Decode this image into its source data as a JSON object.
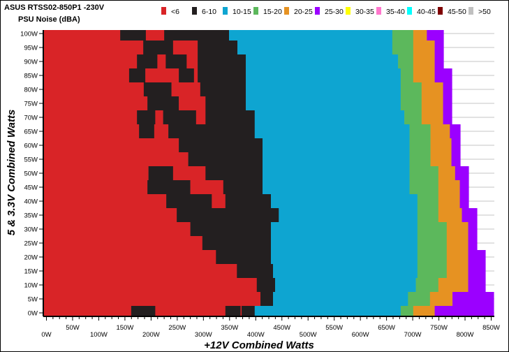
{
  "chart_data": {
    "type": "heatmap",
    "title": "ASUS RTSS02-850P1 -230V",
    "subtitle": "PSU Noise (dBA)",
    "xlabel": "+12V Combined Watts",
    "ylabel": "5 & 3.3V Combined Watts",
    "xlim": [
      -6,
      856
    ],
    "ylim": [
      -1.25,
      101.25
    ],
    "grid": "horizontal gridlines, visible only in empty area",
    "legend_position": "top",
    "legend": [
      {
        "label": "<6",
        "color": "#d92427"
      },
      {
        "label": "6-10",
        "color": "#231f20"
      },
      {
        "label": "10-15",
        "color": "#0ea5d1"
      },
      {
        "label": "15-20",
        "color": "#5cb85c"
      },
      {
        "label": "20-25",
        "color": "#e69222"
      },
      {
        "label": "25-30",
        "color": "#9b00ff"
      },
      {
        "label": "30-35",
        "color": "#ffff00"
      },
      {
        "label": "35-40",
        "color": "#ff77cc"
      },
      {
        "label": "40-45",
        "color": "#00ffff"
      },
      {
        "label": "45-50",
        "color": "#7f0000"
      },
      {
        "label": ">50",
        "color": "#c0c0c0"
      }
    ],
    "yticks": [
      "0W",
      "5W",
      "10W",
      "15W",
      "20W",
      "25W",
      "30W",
      "35W",
      "40W",
      "45W",
      "50W",
      "55W",
      "60W",
      "65W",
      "70W",
      "75W",
      "80W",
      "85W",
      "90W",
      "95W",
      "100W"
    ],
    "xticks_upper": [
      "50W",
      "150W",
      "250W",
      "350W",
      "450W",
      "550W",
      "650W",
      "750W",
      "850W"
    ],
    "xticks_lower": [
      "0W",
      "100W",
      "200W",
      "300W",
      "400W",
      "500W",
      "600W",
      "700W",
      "800W"
    ],
    "rows_note_units": "each row: y in W (5 & 3.3V); bands list [upper +12V W, noise band]",
    "rows": [
      {
        "y": 100,
        "bands": [
          [
            141,
            "<6"
          ],
          [
            190,
            "6-10"
          ],
          [
            225,
            "<6"
          ],
          [
            349,
            "6-10"
          ],
          [
            661,
            "10-15"
          ],
          [
            701,
            "15-20"
          ],
          [
            727,
            "20-25"
          ],
          [
            759,
            "25-30"
          ]
        ]
      },
      {
        "y": 95,
        "bands": [
          [
            185,
            "<6"
          ],
          [
            242,
            "6-10"
          ],
          [
            289,
            "<6"
          ],
          [
            365,
            "6-10"
          ],
          [
            661,
            "10-15"
          ],
          [
            701,
            "15-20"
          ],
          [
            742,
            "20-25"
          ],
          [
            759,
            "25-30"
          ]
        ]
      },
      {
        "y": 90,
        "bands": [
          [
            173,
            "<6"
          ],
          [
            212,
            "6-10"
          ],
          [
            228,
            "<6"
          ],
          [
            268,
            "6-10"
          ],
          [
            289,
            "<6"
          ],
          [
            381,
            "6-10"
          ],
          [
            672,
            "10-15"
          ],
          [
            701,
            "15-20"
          ],
          [
            742,
            "20-25"
          ],
          [
            759,
            "25-30"
          ]
        ]
      },
      {
        "y": 85,
        "bands": [
          [
            158,
            "<6"
          ],
          [
            189,
            "6-10"
          ],
          [
            253,
            "<6"
          ],
          [
            282,
            "6-10"
          ],
          [
            289,
            "<6"
          ],
          [
            381,
            "6-10"
          ],
          [
            677,
            "10-15"
          ],
          [
            701,
            "15-20"
          ],
          [
            742,
            "20-25"
          ],
          [
            775,
            "25-30"
          ]
        ]
      },
      {
        "y": 80,
        "bands": [
          [
            186,
            "<6"
          ],
          [
            239,
            "6-10"
          ],
          [
            294,
            "<6"
          ],
          [
            381,
            "6-10"
          ],
          [
            677,
            "10-15"
          ],
          [
            717,
            "15-20"
          ],
          [
            758,
            "20-25"
          ],
          [
            775,
            "25-30"
          ]
        ]
      },
      {
        "y": 75,
        "bands": [
          [
            193,
            "<6"
          ],
          [
            253,
            "6-10"
          ],
          [
            304,
            "<6"
          ],
          [
            381,
            "6-10"
          ],
          [
            677,
            "10-15"
          ],
          [
            717,
            "15-20"
          ],
          [
            758,
            "20-25"
          ],
          [
            775,
            "25-30"
          ]
        ]
      },
      {
        "y": 70,
        "bands": [
          [
            173,
            "<6"
          ],
          [
            208,
            "6-10"
          ],
          [
            223,
            "<6"
          ],
          [
            286,
            "6-10"
          ],
          [
            304,
            "<6"
          ],
          [
            398,
            "6-10"
          ],
          [
            684,
            "10-15"
          ],
          [
            717,
            "15-20"
          ],
          [
            758,
            "20-25"
          ],
          [
            775,
            "25-30"
          ]
        ]
      },
      {
        "y": 65,
        "bands": [
          [
            177,
            "<6"
          ],
          [
            206,
            "6-10"
          ],
          [
            233,
            "<6"
          ],
          [
            398,
            "6-10"
          ],
          [
            694,
            "10-15"
          ],
          [
            734,
            "15-20"
          ],
          [
            771,
            "20-25"
          ],
          [
            791,
            "25-30"
          ]
        ]
      },
      {
        "y": 60,
        "bands": [
          [
            253,
            "<6"
          ],
          [
            413,
            "6-10"
          ],
          [
            694,
            "10-15"
          ],
          [
            734,
            "15-20"
          ],
          [
            774,
            "20-25"
          ],
          [
            791,
            "25-30"
          ]
        ]
      },
      {
        "y": 55,
        "bands": [
          [
            271,
            "<6"
          ],
          [
            413,
            "6-10"
          ],
          [
            694,
            "10-15"
          ],
          [
            734,
            "15-20"
          ],
          [
            774,
            "20-25"
          ],
          [
            791,
            "25-30"
          ]
        ]
      },
      {
        "y": 50,
        "bands": [
          [
            195,
            "<6"
          ],
          [
            242,
            "6-10"
          ],
          [
            304,
            "<6"
          ],
          [
            413,
            "6-10"
          ],
          [
            694,
            "10-15"
          ],
          [
            749,
            "15-20"
          ],
          [
            781,
            "20-25"
          ],
          [
            807,
            "25-30"
          ]
        ]
      },
      {
        "y": 45,
        "bands": [
          [
            193,
            "<6"
          ],
          [
            275,
            "6-10"
          ],
          [
            338,
            "<6"
          ],
          [
            413,
            "6-10"
          ],
          [
            694,
            "10-15"
          ],
          [
            749,
            "15-20"
          ],
          [
            790,
            "20-25"
          ],
          [
            807,
            "25-30"
          ]
        ]
      },
      {
        "y": 40,
        "bands": [
          [
            229,
            "<6"
          ],
          [
            316,
            "6-10"
          ],
          [
            342,
            "<6"
          ],
          [
            429,
            "6-10"
          ],
          [
            709,
            "10-15"
          ],
          [
            749,
            "15-20"
          ],
          [
            790,
            "20-25"
          ],
          [
            807,
            "25-30"
          ]
        ]
      },
      {
        "y": 35,
        "bands": [
          [
            249,
            "<6"
          ],
          [
            444,
            "6-10"
          ],
          [
            709,
            "10-15"
          ],
          [
            749,
            "15-20"
          ],
          [
            794,
            "20-25"
          ],
          [
            823,
            "25-30"
          ]
        ]
      },
      {
        "y": 30,
        "bands": [
          [
            275,
            "<6"
          ],
          [
            429,
            "6-10"
          ],
          [
            709,
            "10-15"
          ],
          [
            765,
            "15-20"
          ],
          [
            806,
            "20-25"
          ],
          [
            823,
            "25-30"
          ]
        ]
      },
      {
        "y": 25,
        "bands": [
          [
            298,
            "<6"
          ],
          [
            429,
            "6-10"
          ],
          [
            709,
            "10-15"
          ],
          [
            765,
            "15-20"
          ],
          [
            806,
            "20-25"
          ],
          [
            823,
            "25-30"
          ]
        ]
      },
      {
        "y": 20,
        "bands": [
          [
            324,
            "<6"
          ],
          [
            429,
            "6-10"
          ],
          [
            709,
            "10-15"
          ],
          [
            765,
            "15-20"
          ],
          [
            806,
            "20-25"
          ],
          [
            839,
            "25-30"
          ]
        ]
      },
      {
        "y": 15,
        "bands": [
          [
            364,
            "<6"
          ],
          [
            433,
            "6-10"
          ],
          [
            709,
            "10-15"
          ],
          [
            765,
            "15-20"
          ],
          [
            806,
            "20-25"
          ],
          [
            839,
            "25-30"
          ]
        ]
      },
      {
        "y": 10,
        "bands": [
          [
            402,
            "<6"
          ],
          [
            437,
            "6-10"
          ],
          [
            706,
            "10-15"
          ],
          [
            749,
            "15-20"
          ],
          [
            806,
            "20-25"
          ],
          [
            839,
            "25-30"
          ]
        ]
      },
      {
        "y": 5,
        "bands": [
          [
            409,
            "<6"
          ],
          [
            433,
            "6-10"
          ],
          [
            691,
            "10-15"
          ],
          [
            733,
            "15-20"
          ],
          [
            776,
            "20-25"
          ],
          [
            855,
            "25-30"
          ]
        ]
      },
      {
        "y": 0,
        "bands": [
          [
            162,
            "<6"
          ],
          [
            208,
            "6-10"
          ],
          [
            342,
            "<6"
          ],
          [
            371,
            "6-10"
          ],
          [
            373,
            "<6"
          ],
          [
            398,
            "6-10"
          ],
          [
            677,
            "10-15"
          ],
          [
            701,
            "15-20"
          ],
          [
            742,
            "20-25"
          ],
          [
            855,
            "25-30"
          ]
        ]
      }
    ]
  }
}
